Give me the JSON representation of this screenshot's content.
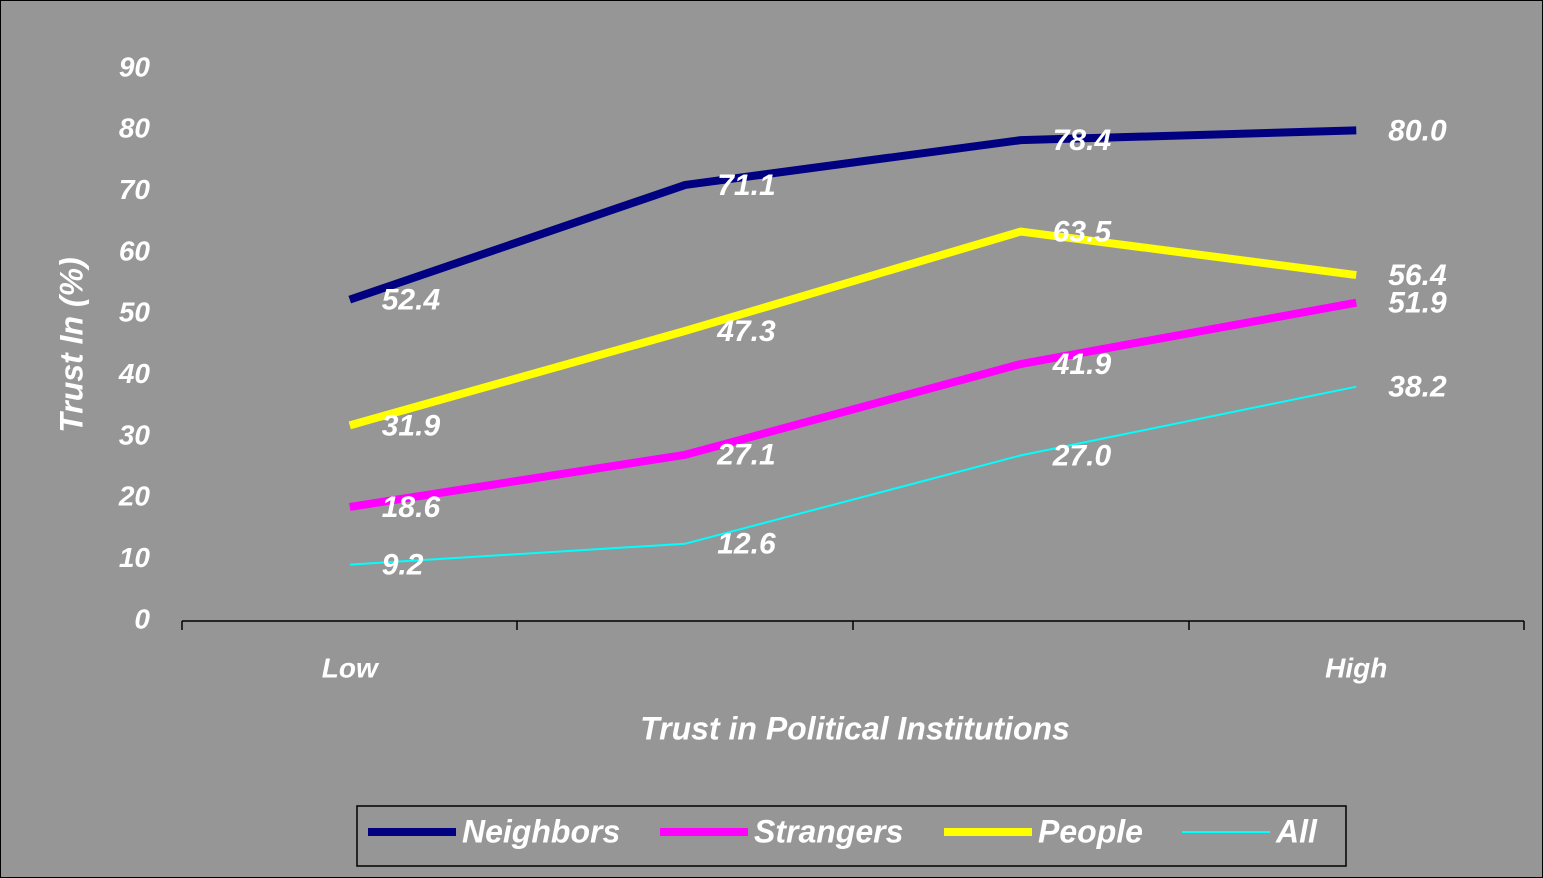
{
  "chart_data": {
    "type": "line",
    "x_label": "Trust in Political Institutions",
    "y_label": "Trust In (%)",
    "categories": [
      "Low",
      null,
      null,
      "High"
    ],
    "series": [
      {
        "name": "Neighbors",
        "color": "#000080",
        "width": 8,
        "values": [
          52.4,
          71.1,
          78.4,
          80.0
        ],
        "value_labels": [
          "52.4",
          "71.1",
          "78.4",
          "80.0"
        ]
      },
      {
        "name": "Strangers",
        "color": "#ff00ff",
        "width": 8,
        "values": [
          18.6,
          27.1,
          41.9,
          51.9
        ],
        "value_labels": [
          "18.6",
          "27.1",
          "41.9",
          "51.9"
        ]
      },
      {
        "name": "People",
        "color": "#ffff00",
        "width": 8,
        "values": [
          31.9,
          47.3,
          63.5,
          56.4
        ],
        "value_labels": [
          "31.9",
          "47.3",
          "63.5",
          "56.4"
        ]
      },
      {
        "name": "All",
        "color": "#00ffff",
        "width": 2,
        "values": [
          9.2,
          12.6,
          27.0,
          38.2
        ],
        "value_labels": [
          "9.2",
          "12.6",
          "27.0",
          "38.2"
        ]
      }
    ],
    "ylim": [
      0,
      90
    ],
    "yticks": [
      0,
      10,
      20,
      30,
      40,
      50,
      60,
      70,
      80,
      90
    ],
    "legend": "bottom"
  }
}
